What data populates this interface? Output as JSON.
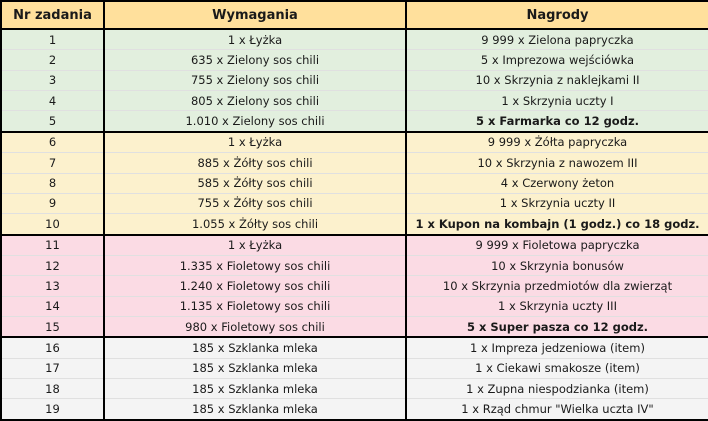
{
  "table": {
    "headers": [
      "Nr zadania",
      "Wymagania",
      "Nagrody"
    ],
    "rows": [
      {
        "nr": "1",
        "requirement": "1 x Łyżka",
        "reward": "9 999 x Zielona papryczka"
      },
      {
        "nr": "2",
        "requirement": "635 x Zielony sos chili",
        "reward": "5 x Imprezowa wejściówka"
      },
      {
        "nr": "3",
        "requirement": "755 x Zielony sos chili",
        "reward": "10 x Skrzynia z naklejkami II"
      },
      {
        "nr": "4",
        "requirement": "805 x Zielony sos chili",
        "reward": "1 x Skrzynia uczty I"
      },
      {
        "nr": "5",
        "requirement": "1.010 x Zielony sos chili",
        "reward": "5 x Farmarka co 12 godz."
      },
      {
        "nr": "6",
        "requirement": "1 x Łyżka",
        "reward": "9 999 x Żółta papryczka"
      },
      {
        "nr": "7",
        "requirement": "885 x Żółty sos chili",
        "reward": "10 x Skrzynia z nawozem III"
      },
      {
        "nr": "8",
        "requirement": "585 x Żółty sos chili",
        "reward": "4 x Czerwony żeton"
      },
      {
        "nr": "9",
        "requirement": "755 x Żółty sos chili",
        "reward": "1 x Skrzynia uczty II"
      },
      {
        "nr": "10",
        "requirement": "1.055 x Żółty sos chili",
        "reward": "1 x Kupon na kombajn (1 godz.) co 18 godz."
      },
      {
        "nr": "11",
        "requirement": "1 x Łyżka",
        "reward": "9 999 x Fioletowa papryczka"
      },
      {
        "nr": "12",
        "requirement": "1.335 x Fioletowy sos chili",
        "reward": "10 x Skrzynia bonusów"
      },
      {
        "nr": "13",
        "requirement": "1.240 x Fioletowy sos chili",
        "reward": "10 x Skrzynia przedmiotów dla zwierząt"
      },
      {
        "nr": "14",
        "requirement": "1.135 x Fioletowy sos chili",
        "reward": "1 x Skrzynia uczty III"
      },
      {
        "nr": "15",
        "requirement": "980 x Fioletowy sos chili",
        "reward": "5 x Super pasza co 12 godz."
      },
      {
        "nr": "16",
        "requirement": "185 x Szklanka mleka",
        "reward": "1 x Impreza jedzeniowa (item)"
      },
      {
        "nr": "17",
        "requirement": "185 x Szklanka mleka",
        "reward": "1 x Ciekawi smakosze (item)"
      },
      {
        "nr": "18",
        "requirement": "185 x Szklanka mleka",
        "reward": "1 x Zupna niespodzianka (item)"
      },
      {
        "nr": "19",
        "requirement": "185 x Szklanka mleka",
        "reward": "1 x Rząd chmur \"Wielka uczta IV\""
      }
    ]
  },
  "colors": {
    "header_bg": "#ffe09c",
    "group_green_bg": "#e2efde",
    "group_yellow_bg": "#fcf1cd",
    "group_pink_bg": "#fbdbe4",
    "group_white_bg": "#f4f4f4",
    "border": "#000000",
    "text": "#1a1a1a"
  }
}
